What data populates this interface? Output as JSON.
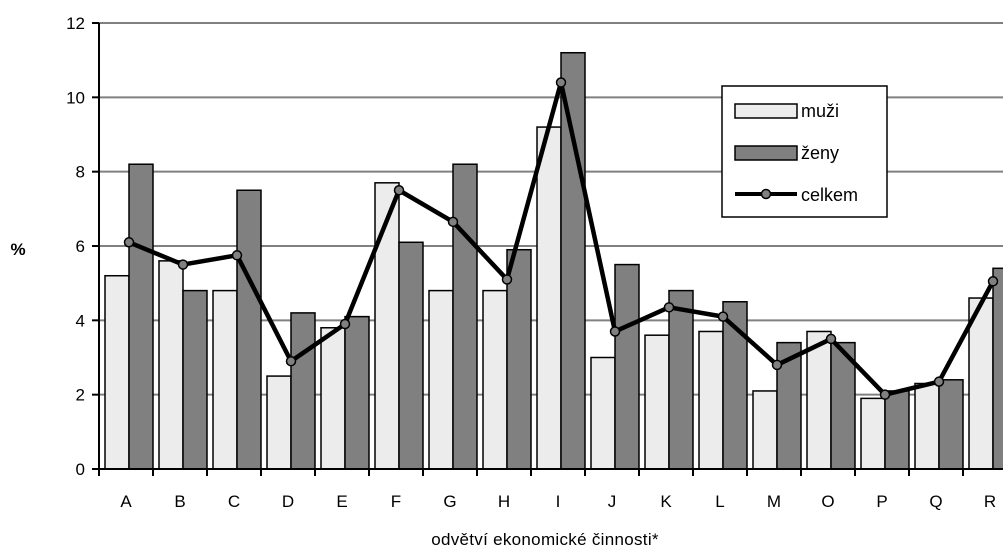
{
  "chart_data": {
    "type": "bar",
    "categories": [
      "A",
      "B",
      "C",
      "D",
      "E",
      "F",
      "G",
      "H",
      "I",
      "J",
      "K",
      "L",
      "M",
      "O",
      "P",
      "Q",
      "R"
    ],
    "series": [
      {
        "name": "muži",
        "kind": "bar",
        "color": "#ececec",
        "values": [
          5.2,
          5.6,
          4.8,
          2.5,
          3.8,
          7.7,
          4.8,
          4.8,
          9.2,
          3.0,
          3.6,
          3.7,
          2.1,
          3.7,
          1.9,
          2.3,
          4.6
        ]
      },
      {
        "name": "ženy",
        "kind": "bar",
        "color": "#808080",
        "values": [
          8.2,
          4.8,
          7.5,
          4.2,
          4.1,
          6.1,
          8.2,
          5.9,
          11.2,
          5.5,
          4.8,
          4.5,
          3.4,
          3.4,
          2.1,
          2.4,
          5.4
        ]
      },
      {
        "name": "celkem",
        "kind": "line",
        "color": "#000000",
        "values": [
          6.1,
          5.5,
          5.75,
          2.9,
          3.9,
          7.5,
          6.65,
          5.1,
          10.4,
          3.7,
          4.35,
          4.1,
          2.8,
          3.5,
          2.0,
          2.35,
          5.05
        ]
      }
    ],
    "ylabel": "%",
    "xlabel": "odvětví ekonomické činnosti*",
    "ylim": [
      0,
      12
    ],
    "yticks": [
      "0",
      "2",
      "4",
      "6",
      "8",
      "10",
      "12"
    ],
    "grid": true,
    "legend": "top-right"
  }
}
